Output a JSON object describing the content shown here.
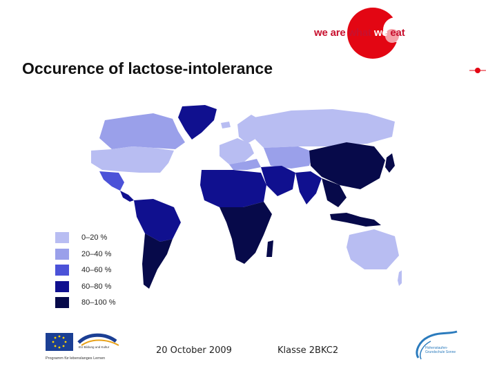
{
  "slide": {
    "title": "Occurence of lactose-intolerance",
    "date": "20 October 2009",
    "class_label": "Klasse 2BKC2"
  },
  "logo": {
    "text_prefix": "we are what ",
    "text_highlight": "we",
    "text_suffix": " eat",
    "color": "#e30613"
  },
  "legend": {
    "items": [
      {
        "label": "0–20 %",
        "color": "#b8bdf2"
      },
      {
        "label": "20–40 %",
        "color": "#9aa0ea"
      },
      {
        "label": "40–60 %",
        "color": "#4b52d8"
      },
      {
        "label": "60–80 %",
        "color": "#10108f"
      },
      {
        "label": "80–100 %",
        "color": "#070a4a"
      }
    ]
  },
  "footer": {
    "eu_program_line1": "EU Bildung und Kultur",
    "eu_program_line2": "Programm für lebenslanges Lernen",
    "right_logo_line1": "Hohenstaufen-",
    "right_logo_line2": "Grundschule Sonne"
  }
}
